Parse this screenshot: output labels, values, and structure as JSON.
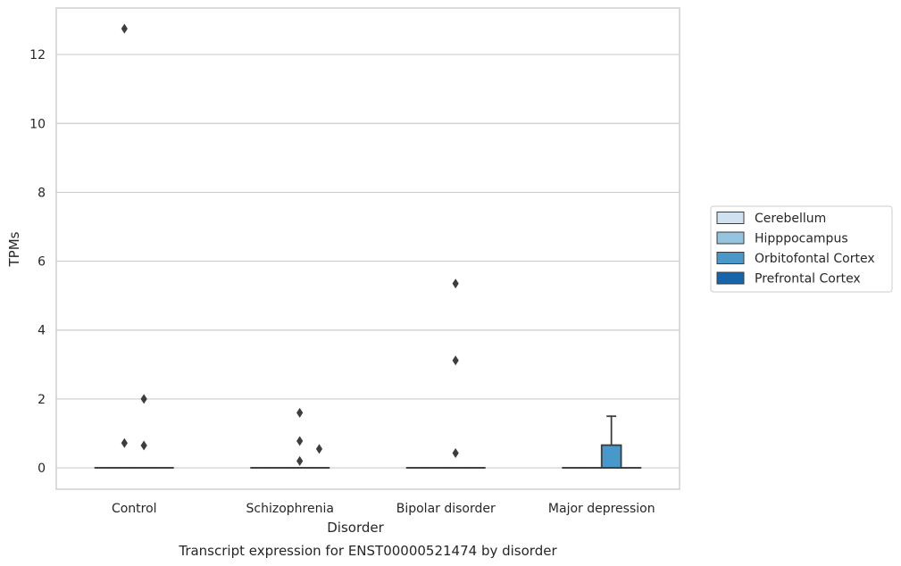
{
  "chart_data": {
    "type": "box",
    "title": "",
    "caption": "Transcript expression for ENST00000521474 by disorder",
    "xlabel": "Disorder",
    "ylabel": "TPMs",
    "ylim": [
      -0.62,
      13.35
    ],
    "yticks": [
      0,
      2,
      4,
      6,
      8,
      10,
      12
    ],
    "grid": "horizontal",
    "legend_position": "right",
    "categories": [
      "Control",
      "Schizophrenia",
      "Bipolar disorder",
      "Major depression"
    ],
    "series": [
      {
        "name": "Cerebellum",
        "color": "#d0e1f2",
        "boxes": [
          {
            "category": "Control",
            "min": 0,
            "q1": 0,
            "median": 0,
            "q3": 0,
            "max": 0,
            "outliers": []
          },
          {
            "category": "Schizophrenia",
            "min": 0,
            "q1": 0,
            "median": 0,
            "q3": 0,
            "max": 0,
            "outliers": []
          },
          {
            "category": "Bipolar disorder",
            "min": 0,
            "q1": 0,
            "median": 0,
            "q3": 0,
            "max": 0,
            "outliers": []
          },
          {
            "category": "Major depression",
            "min": 0,
            "q1": 0,
            "median": 0,
            "q3": 0,
            "max": 0,
            "outliers": []
          }
        ]
      },
      {
        "name": "Hipppocampus",
        "color": "#94c4df",
        "boxes": [
          {
            "category": "Control",
            "min": 0,
            "q1": 0,
            "median": 0,
            "q3": 0,
            "max": 0,
            "outliers": [
              0.72,
              12.75
            ]
          },
          {
            "category": "Schizophrenia",
            "min": 0,
            "q1": 0,
            "median": 0,
            "q3": 0,
            "max": 0,
            "outliers": []
          },
          {
            "category": "Bipolar disorder",
            "min": 0,
            "q1": 0,
            "median": 0,
            "q3": 0,
            "max": 0,
            "outliers": []
          },
          {
            "category": "Major depression",
            "min": 0,
            "q1": 0,
            "median": 0,
            "q3": 0,
            "max": 0,
            "outliers": []
          }
        ]
      },
      {
        "name": "Orbitofontal Cortex",
        "color": "#4a98c9",
        "boxes": [
          {
            "category": "Control",
            "min": 0,
            "q1": 0,
            "median": 0,
            "q3": 0,
            "max": 0,
            "outliers": [
              0.65,
              2.0
            ]
          },
          {
            "category": "Schizophrenia",
            "min": 0,
            "q1": 0,
            "median": 0,
            "q3": 0,
            "max": 0,
            "outliers": [
              0.2,
              0.78,
              1.6
            ]
          },
          {
            "category": "Bipolar disorder",
            "min": 0,
            "q1": 0,
            "median": 0,
            "q3": 0,
            "max": 0,
            "outliers": [
              0.43,
              3.12,
              5.35
            ]
          },
          {
            "category": "Major depression",
            "min": 0,
            "q1": 0,
            "median": 0,
            "q3": 0.66,
            "max": 1.5,
            "outliers": []
          }
        ]
      },
      {
        "name": "Prefrontal Cortex",
        "color": "#1764ab",
        "boxes": [
          {
            "category": "Control",
            "min": 0,
            "q1": 0,
            "median": 0,
            "q3": 0,
            "max": 0,
            "outliers": []
          },
          {
            "category": "Schizophrenia",
            "min": 0,
            "q1": 0,
            "median": 0,
            "q3": 0,
            "max": 0,
            "outliers": [
              0.55
            ]
          },
          {
            "category": "Bipolar disorder",
            "min": 0,
            "q1": 0,
            "median": 0,
            "q3": 0,
            "max": 0,
            "outliers": []
          },
          {
            "category": "Major depression",
            "min": 0,
            "q1": 0,
            "median": 0,
            "q3": 0,
            "max": 0,
            "outliers": []
          }
        ]
      }
    ]
  }
}
